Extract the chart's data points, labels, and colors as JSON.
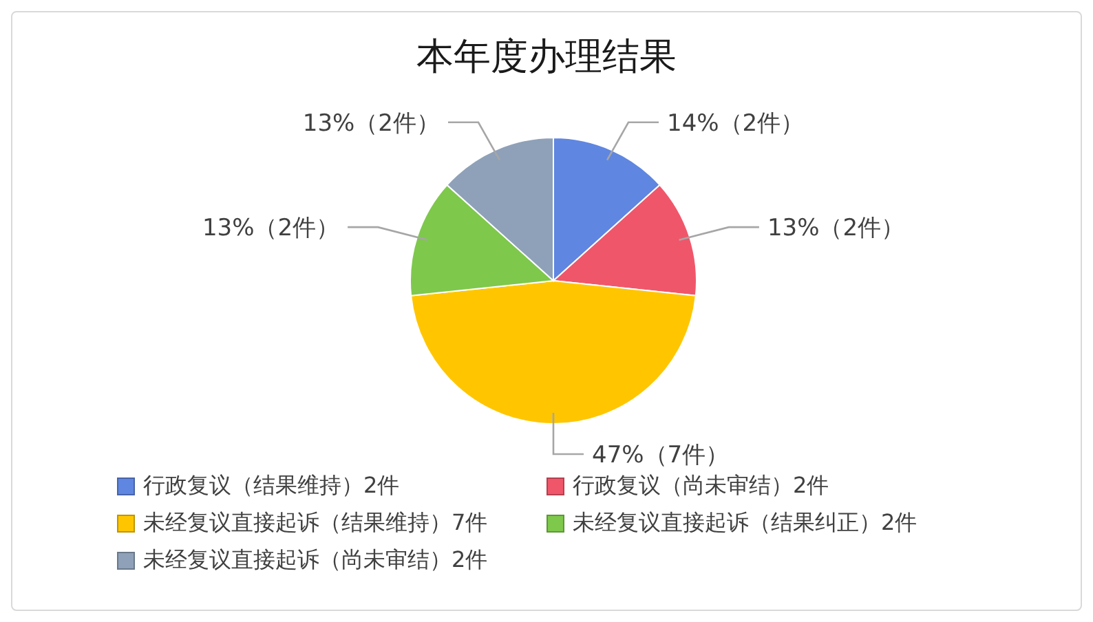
{
  "chart_data": {
    "type": "pie",
    "title": "本年度办理结果",
    "categories": [
      "行政复议（结果维持）2件",
      "行政复议（尚未审结）2件",
      "未经复议直接起诉（结果维持）7件",
      "未经复议直接起诉（结果纠正）2件",
      "未经复议直接起诉（尚未审结）2件"
    ],
    "values": [
      2,
      2,
      7,
      2,
      2
    ],
    "value_labels": [
      "14%（2件）",
      "13%（2件）",
      "47%（7件）",
      "13%（2件）",
      "13%（2件）"
    ],
    "colors": [
      "#5f86e0",
      "#f0566a",
      "#ffc600",
      "#7ec84c",
      "#8ea1b8"
    ],
    "legend": "bottom"
  }
}
